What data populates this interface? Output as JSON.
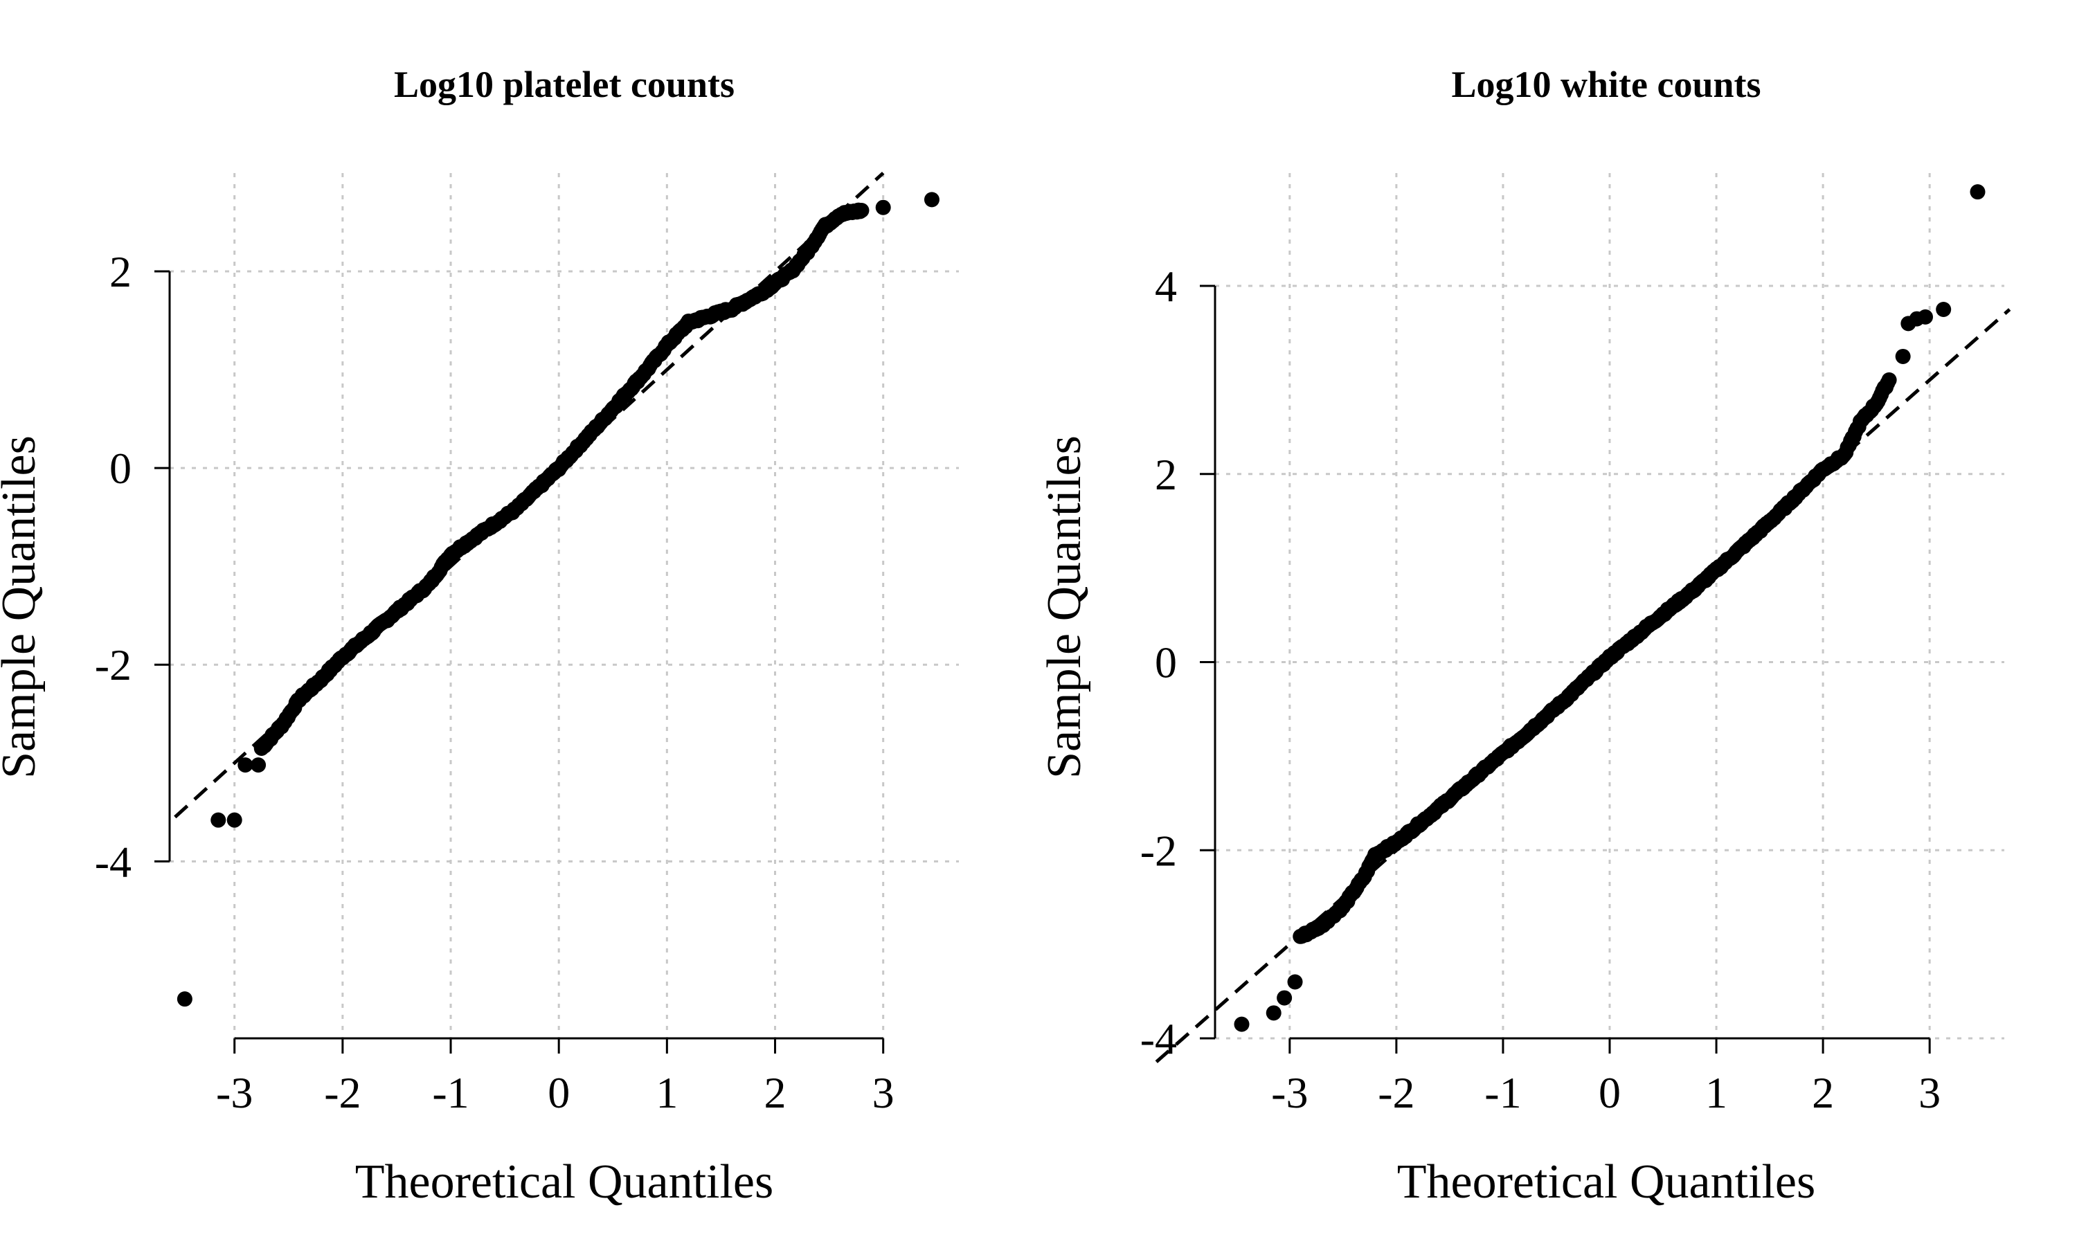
{
  "chart_data": [
    {
      "type": "scatter",
      "title": "Log10 platelet counts",
      "xlabel": "Theoretical Quantiles",
      "ylabel": "Sample Quantiles",
      "xlim": [
        -3.6,
        3.7
      ],
      "ylim": [
        -5.8,
        3.0
      ],
      "x_ticks": [
        -3,
        -2,
        -1,
        0,
        1,
        2,
        3
      ],
      "x_tick_labels": [
        "-3",
        "-2",
        "-1",
        "0",
        "1",
        "2",
        "3"
      ],
      "y_ticks": [
        -4,
        -2,
        0,
        2
      ],
      "y_tick_labels": [
        "-4",
        "-2",
        "0",
        "2"
      ],
      "grid": true,
      "reference_line": {
        "intercept": 0.0,
        "slope": 1.0
      },
      "x_range": [
        -3.0,
        3.0
      ],
      "outliers": [
        {
          "x": -3.46,
          "y": -5.4
        },
        {
          "x": -3.15,
          "y": -3.58
        },
        {
          "x": -3.0,
          "y": -3.58
        },
        {
          "x": -2.9,
          "y": -3.02
        },
        {
          "x": -2.78,
          "y": -3.02
        },
        {
          "x": 3.0,
          "y": 2.65
        },
        {
          "x": 3.45,
          "y": 2.73
        }
      ],
      "segments": [
        {
          "x": [
            -2.75,
            -2.55,
            -2.4,
            -2.2,
            -2.0,
            -1.6,
            -1.2,
            -1.0,
            -0.8,
            -0.4,
            0.0,
            0.4,
            0.8,
            1.0,
            1.2,
            1.6,
            1.9,
            2.15,
            2.3,
            2.45,
            2.6,
            2.8
          ],
          "y": [
            -2.85,
            -2.6,
            -2.35,
            -2.15,
            -1.92,
            -1.55,
            -1.18,
            -0.88,
            -0.72,
            -0.42,
            0.0,
            0.48,
            0.98,
            1.25,
            1.48,
            1.62,
            1.8,
            2.0,
            2.2,
            2.45,
            2.58,
            2.62
          ]
        }
      ]
    },
    {
      "type": "scatter",
      "title": "Log10 white counts",
      "xlabel": "Theoretical Quantiles",
      "ylabel": "Sample Quantiles",
      "xlim": [
        -3.7,
        3.7
      ],
      "ylim": [
        -4.0,
        5.2
      ],
      "x_ticks": [
        -3,
        -2,
        -1,
        0,
        1,
        2,
        3
      ],
      "x_tick_labels": [
        "-3",
        "-2",
        "-1",
        "0",
        "1",
        "2",
        "3"
      ],
      "y_ticks": [
        -4,
        -2,
        0,
        2,
        4
      ],
      "y_tick_labels": [
        "-4",
        "-2",
        "0",
        "2",
        "4"
      ],
      "grid": true,
      "reference_line": {
        "intercept": 0.0,
        "slope": 1.0
      },
      "x_range": [
        -3.7,
        3.7
      ],
      "outliers": [
        {
          "x": -3.45,
          "y": -3.85
        },
        {
          "x": -3.15,
          "y": -3.73
        },
        {
          "x": -3.05,
          "y": -3.57
        },
        {
          "x": -2.95,
          "y": -3.4
        },
        {
          "x": 2.75,
          "y": 3.25
        },
        {
          "x": 2.8,
          "y": 3.6
        },
        {
          "x": 2.88,
          "y": 3.65
        },
        {
          "x": 2.96,
          "y": 3.67
        },
        {
          "x": 3.13,
          "y": 3.75
        },
        {
          "x": 3.45,
          "y": 5.0
        }
      ],
      "segments": [
        {
          "x": [
            -2.9,
            -2.7,
            -2.5,
            -2.3,
            -2.2,
            -2.0,
            -1.6,
            -1.2,
            -0.8,
            -0.4,
            0.0,
            0.4,
            0.8,
            1.2,
            1.6,
            2.0,
            2.2,
            2.35,
            2.5,
            2.62
          ],
          "y": [
            -2.92,
            -2.8,
            -2.6,
            -2.28,
            -2.05,
            -1.92,
            -1.55,
            -1.16,
            -0.78,
            -0.38,
            0.05,
            0.42,
            0.78,
            1.18,
            1.6,
            2.05,
            2.2,
            2.55,
            2.75,
            3.0
          ]
        }
      ]
    }
  ]
}
